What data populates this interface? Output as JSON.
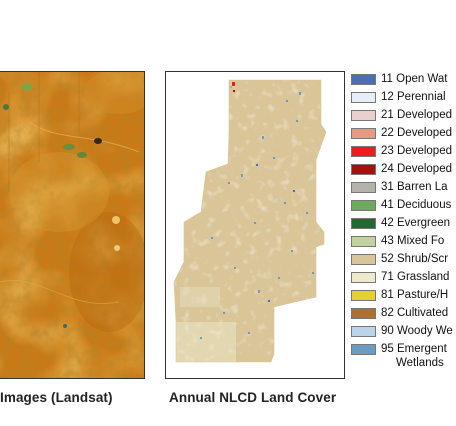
{
  "captions": {
    "landsat": "Images (Landsat)",
    "nlcd": "Annual NLCD Land Cover"
  },
  "legend": {
    "items": [
      {
        "code": "11",
        "label": "Open Wat",
        "color": "#4a6fb5"
      },
      {
        "code": "12",
        "label": "Perennial",
        "color": "#e8eef8"
      },
      {
        "code": "21",
        "label": "Developed",
        "color": "#e9cfcf"
      },
      {
        "code": "22",
        "label": "Developed",
        "color": "#e59a82"
      },
      {
        "code": "23",
        "label": "Developed",
        "color": "#ee1c1c"
      },
      {
        "code": "24",
        "label": "Developed",
        "color": "#a81010"
      },
      {
        "code": "31",
        "label": "Barren La",
        "color": "#b5b1ab"
      },
      {
        "code": "41",
        "label": "Deciduous",
        "color": "#6daa5c"
      },
      {
        "code": "42",
        "label": "Evergreen",
        "color": "#1f6a2e"
      },
      {
        "code": "43",
        "label": "Mixed Fo",
        "color": "#c3d1a0"
      },
      {
        "code": "52",
        "label": "Shrub/Scr",
        "color": "#d9c598"
      },
      {
        "code": "71",
        "label": "Grassland",
        "color": "#eee9cc"
      },
      {
        "code": "81",
        "label": "Pasture/H",
        "color": "#e3d22b"
      },
      {
        "code": "82",
        "label": "Cultivated",
        "color": "#b06f2c"
      },
      {
        "code": "90",
        "label": "Woody We",
        "color": "#bcd4ea"
      },
      {
        "code": "95",
        "label": "Emergent",
        "label2": "Wetlands",
        "color": "#6a9cc3"
      }
    ]
  }
}
